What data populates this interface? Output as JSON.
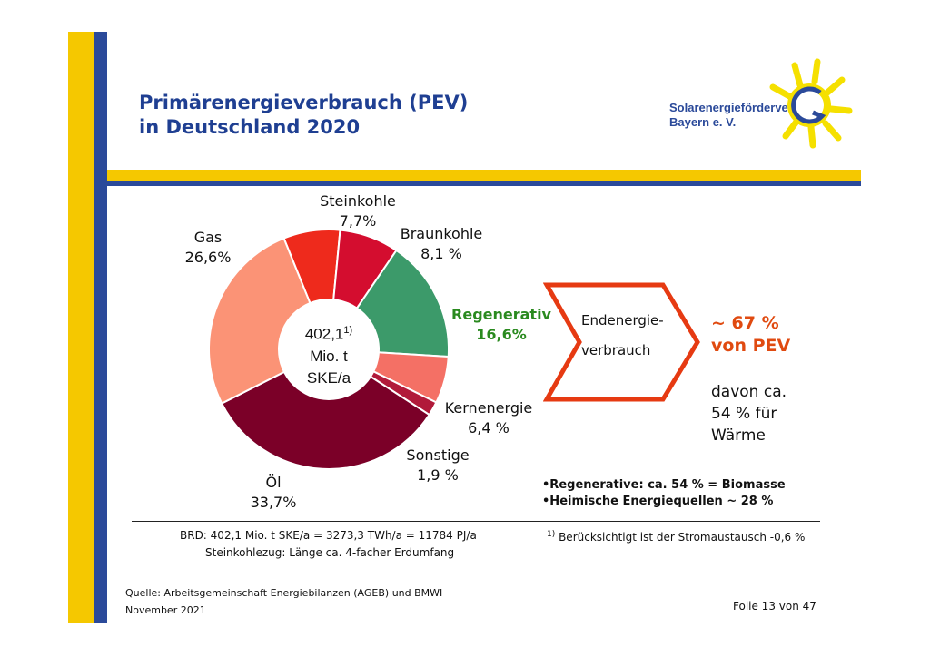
{
  "title_line1": "Primärenergieverbrauch (PEV)",
  "title_line2": "in Deutschland 2020",
  "logo": {
    "line1": "Solarenergieförderverein",
    "line2": "Bayern e. V."
  },
  "chart_data": {
    "type": "pie",
    "title": "",
    "categories": [
      "Steinkohle",
      "Braunkohle",
      "Regenerativ",
      "Kernenergie",
      "Sonstige",
      "Öl",
      "Gas"
    ],
    "values": [
      7.7,
      8.1,
      16.6,
      6.4,
      1.9,
      33.7,
      26.6
    ],
    "value_labels": [
      "7,7%",
      "8,1 %",
      "16,6%",
      "6,4 %",
      "1,9 %",
      "33,7%",
      "26,6%"
    ],
    "colors": [
      "#ee2a1c",
      "#d40d2f",
      "#3c9a6a",
      "#f47065",
      "#b11a3a",
      "#7b0028",
      "#fb9376"
    ],
    "center": {
      "value": "402,1",
      "note": "1)",
      "line2": "Mio. t",
      "line3": "SKE/a"
    }
  },
  "arrow_box": {
    "line1": "Endenergie-",
    "line2": "verbrauch"
  },
  "result": {
    "line1": "~ 67 %",
    "line2": "von PEV"
  },
  "detail": {
    "line1": "davon ca.",
    "line2": "54 % für",
    "line3": "Wärme"
  },
  "bullets": [
    "•Regenerative: ca. 54 % = Biomasse",
    "•Heimische Energiequellen ~ 28 %"
  ],
  "footer": {
    "brd": "BRD: 402,1 Mio. t SKE/a = 3273,3 TWh/a = 11784 PJ/a",
    "zug": "Steinkohlezug: Länge ca. 4-facher Erdumfang",
    "note_marker": "1)",
    "note": "Berücksichtigt ist der Stromaustausch -0,6 %",
    "source": "Quelle: Arbeitsgemeinschaft Energiebilanzen (AGEB) und BMWI",
    "date": "November 2021",
    "slide": "Folie 13 von 47"
  }
}
